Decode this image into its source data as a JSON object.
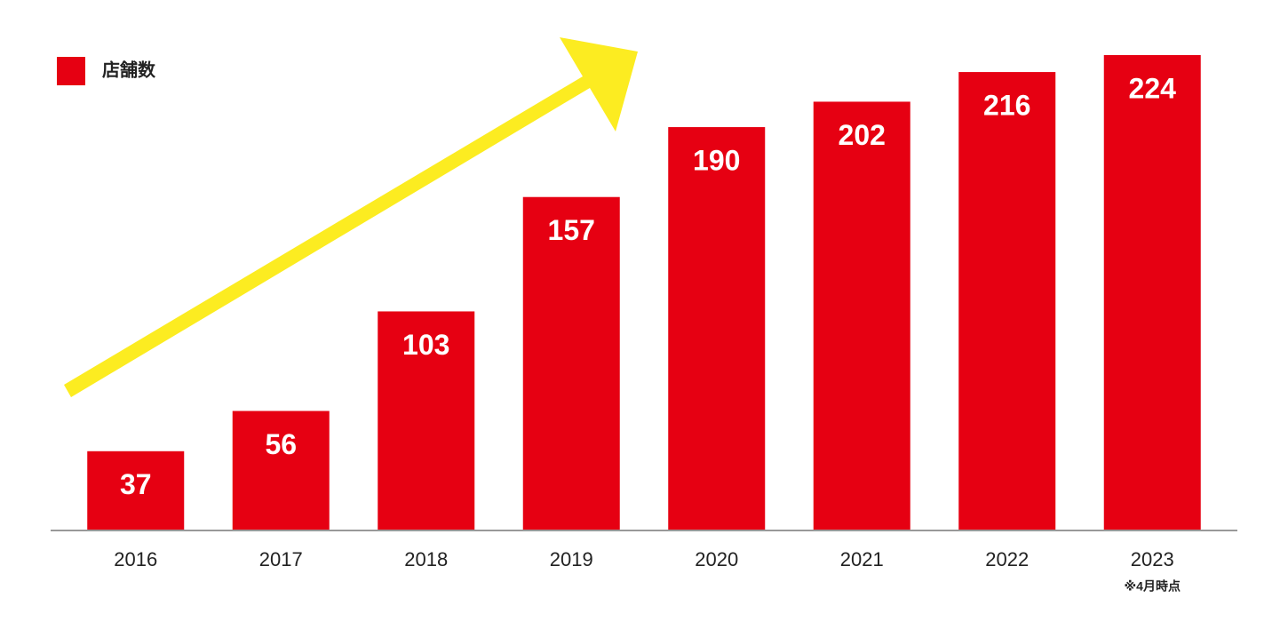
{
  "chart_data": {
    "type": "bar",
    "categories": [
      "2016",
      "2017",
      "2018",
      "2019",
      "2020",
      "2021",
      "2022",
      "2023"
    ],
    "series": [
      {
        "name": "店舗数",
        "color": "#e60012",
        "values": [
          37,
          56,
          103,
          157,
          190,
          202,
          216,
          224
        ]
      }
    ],
    "annotation": "※4月時点",
    "legend": "top-left"
  }
}
